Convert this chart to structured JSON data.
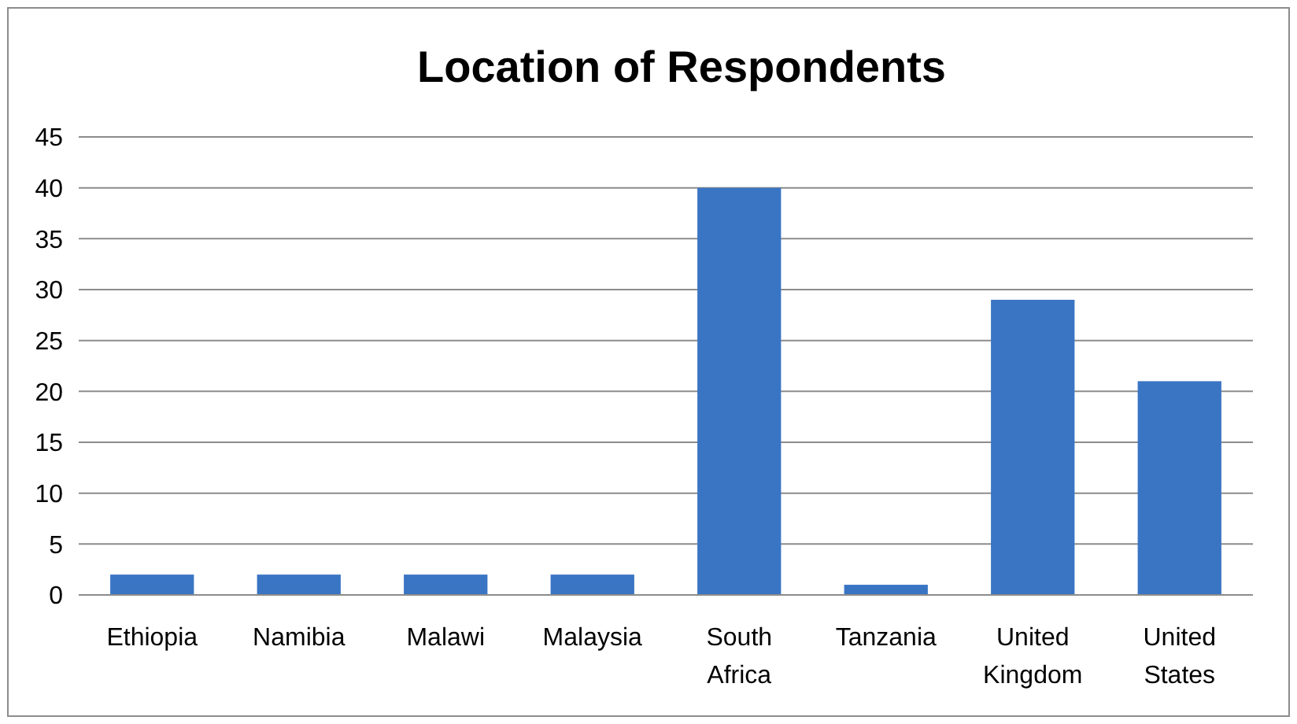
{
  "chart_data": {
    "type": "bar",
    "title": "Location of Respondents",
    "categories": [
      "Ethiopia",
      "Namibia",
      "Malawi",
      "Malaysia",
      "South Africa",
      "Tanzania",
      "United Kingdom",
      "United States"
    ],
    "values": [
      2,
      2,
      2,
      2,
      40,
      1,
      29,
      21
    ],
    "color": "#3a75c4",
    "ylim": [
      0,
      45
    ],
    "yticks": [
      0,
      5,
      10,
      15,
      20,
      25,
      30,
      35,
      40,
      45
    ],
    "grid": "y"
  }
}
